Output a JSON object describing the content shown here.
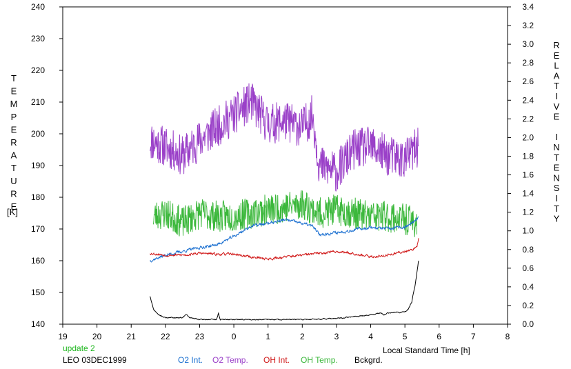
{
  "chart_data": {
    "type": "line",
    "xlabel": "Local Standard Time [h]",
    "ylabel_left": "TEMPERATURE",
    "ylabel_left_unit": "[K]",
    "ylabel_right": "RELATIVE INTENSITY",
    "x_ticks": [
      "19",
      "20",
      "21",
      "22",
      "23",
      "0",
      "1",
      "2",
      "3",
      "4",
      "5",
      "6",
      "7",
      "8"
    ],
    "xlim_hours": [
      19,
      32
    ],
    "y_left_ticks": [
      "240",
      "230",
      "220",
      "210",
      "200",
      "190",
      "180",
      "170",
      "160",
      "150",
      "140"
    ],
    "ylim_left": [
      140,
      240
    ],
    "y_right_ticks": [
      "3.4",
      "3.2",
      "3.0",
      "2.8",
      "2.6",
      "2.4",
      "2.2",
      "2.0",
      "1.8",
      "1.6",
      "1.4",
      "1.2",
      "1.0",
      "0.8",
      "0.6",
      "0.4",
      "0.2",
      "0.0"
    ],
    "ylim_right": [
      0,
      3.4
    ],
    "grid": false,
    "legend_position": "bottom",
    "update_label": "update 2",
    "station_label": "LEO 03DEC1999",
    "legend": [
      "O2 Int.",
      "O2 Temp.",
      "OH Int.",
      "OH Temp.",
      "Bckgrd."
    ],
    "series": [
      {
        "name": "O2 Temp.",
        "axis": "left",
        "color": "#9a40c8",
        "x": [
          21.55,
          22.0,
          22.5,
          23.0,
          23.5,
          24.0,
          24.25,
          24.5,
          25.0,
          25.5,
          26.0,
          26.3,
          26.5,
          27.0,
          27.5,
          28.0,
          28.5,
          29.0,
          29.4
        ],
        "y": [
          198,
          196,
          193,
          198,
          202,
          206,
          208,
          210,
          203,
          204,
          202,
          206,
          190,
          188,
          195,
          196,
          193,
          192,
          196
        ],
        "noise": 6.5,
        "seed": 11
      },
      {
        "name": "OH Temp.",
        "axis": "left",
        "color": "#3cb83c",
        "x": [
          21.65,
          22.0,
          22.5,
          23.0,
          23.5,
          24.0,
          24.5,
          25.0,
          25.5,
          26.0,
          26.5,
          27.0,
          27.5,
          28.0,
          28.5,
          29.0,
          29.35
        ],
        "y": [
          174,
          175,
          172,
          175,
          174,
          174,
          175,
          176,
          177,
          178,
          175,
          176,
          175,
          174,
          174,
          173,
          172
        ],
        "noise": 5,
        "seed": 23
      },
      {
        "name": "O2 Int.",
        "axis": "right",
        "color": "#1a6fd0",
        "x": [
          21.55,
          22.0,
          22.5,
          23.0,
          23.5,
          24.0,
          24.5,
          25.0,
          25.5,
          26.0,
          26.3,
          26.5,
          27.0,
          27.5,
          28.0,
          28.5,
          29.0,
          29.3,
          29.4
        ],
        "y": [
          0.68,
          0.74,
          0.78,
          0.82,
          0.85,
          0.94,
          1.05,
          1.08,
          1.12,
          1.08,
          1.05,
          0.96,
          0.98,
          1.01,
          1.04,
          1.02,
          1.04,
          1.1,
          1.14
        ],
        "noise": 0.012,
        "seed": 37
      },
      {
        "name": "OH Int.",
        "axis": "right",
        "color": "#d01818",
        "x": [
          21.55,
          22.0,
          22.5,
          23.0,
          23.5,
          24.0,
          24.5,
          25.0,
          25.5,
          26.0,
          26.5,
          27.0,
          27.5,
          28.0,
          28.5,
          29.0,
          29.35,
          29.4
        ],
        "y": [
          0.76,
          0.74,
          0.74,
          0.76,
          0.75,
          0.75,
          0.72,
          0.7,
          0.72,
          0.74,
          0.76,
          0.78,
          0.76,
          0.72,
          0.74,
          0.78,
          0.82,
          0.92
        ],
        "noise": 0.01,
        "seed": 53
      },
      {
        "name": "Bckgrd.",
        "axis": "right",
        "color": "#000000",
        "x": [
          21.55,
          21.65,
          21.8,
          22.0,
          22.5,
          22.6,
          22.7,
          23.0,
          23.5,
          23.55,
          23.6,
          24.0,
          25.0,
          26.0,
          27.0,
          28.0,
          28.3,
          28.4,
          28.5,
          29.0,
          29.1,
          29.2,
          29.3,
          29.4
        ],
        "y": [
          0.3,
          0.16,
          0.1,
          0.07,
          0.07,
          0.11,
          0.07,
          0.05,
          0.05,
          0.12,
          0.05,
          0.05,
          0.05,
          0.05,
          0.06,
          0.1,
          0.12,
          0.1,
          0.12,
          0.13,
          0.16,
          0.24,
          0.42,
          0.68
        ],
        "noise": 0.004,
        "seed": 71
      }
    ]
  }
}
